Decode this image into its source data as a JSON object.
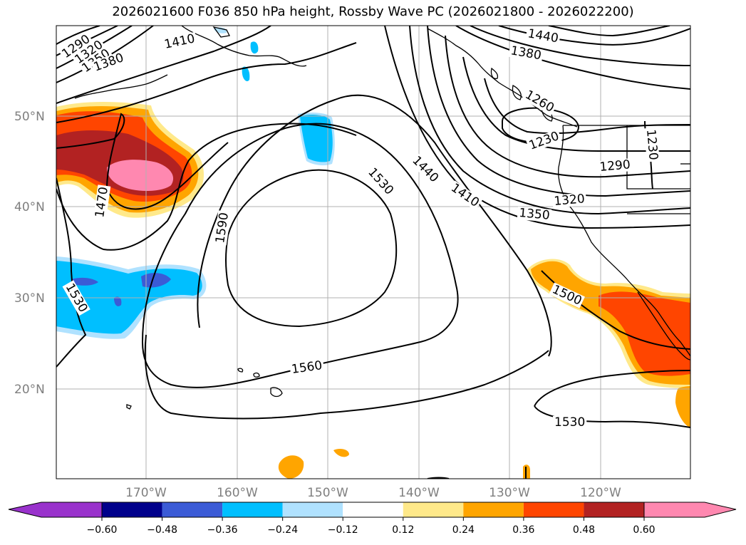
{
  "title": "2026021600 F036 850 hPa height, Rossby Wave PC (2026021800 - 2026022200)",
  "lat_labels": [
    "50°N",
    "40°N",
    "30°N",
    "20°N"
  ],
  "lon_labels": [
    "170°W",
    "160°W",
    "150°W",
    "140°W",
    "130°W",
    "120°W"
  ],
  "contour_labels": [
    "1290",
    "1320",
    "1350",
    "1380",
    "1410",
    "1440",
    "1380",
    "1260",
    "1230",
    "1230",
    "1290",
    "1320",
    "1350",
    "1410",
    "1440",
    "1530",
    "1590",
    "1470",
    "1530",
    "1560",
    "1500",
    "1530"
  ],
  "colorbar": {
    "ticks": [
      "−0.60",
      "−0.48",
      "−0.36",
      "−0.24",
      "−0.12",
      "0.12",
      "0.24",
      "0.36",
      "0.48",
      "0.60"
    ],
    "colors": [
      "#9932cc",
      "#00008b",
      "#3b5bd6",
      "#00bfff",
      "#b0e2ff",
      "#ffffff",
      "#ffe98a",
      "#ffa500",
      "#ff4500",
      "#b22222",
      "#ff88b0"
    ]
  }
}
